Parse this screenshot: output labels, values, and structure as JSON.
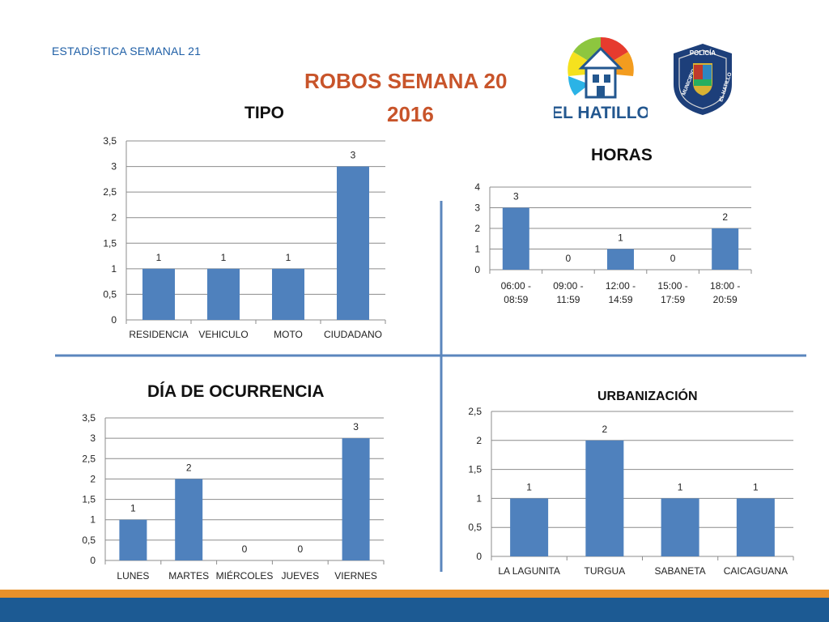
{
  "header": {
    "subtitle": "ESTADÍSTICA SEMANAL 21",
    "title_line1": "ROBOS SEMANA 20",
    "title_line2": "2016",
    "logo_hatillo_text": "EL HATILLO",
    "badge_top_text": "POLICÍA",
    "badge_left_text": "MUNICIPIO",
    "badge_right_text": "EL HATILLO"
  },
  "colors": {
    "bar": "#4f81bd",
    "title_orange": "#c8542a",
    "subtitle_blue": "#1f5fa6",
    "divider": "#4f81bd",
    "footer_orange": "#e8912a",
    "footer_blue": "#1c5a93"
  },
  "chart_data": [
    {
      "id": "tipo",
      "type": "bar",
      "title": "TIPO",
      "categories": [
        "RESIDENCIA",
        "VEHICULO",
        "MOTO",
        "CIUDADANO"
      ],
      "values": [
        1,
        1,
        1,
        3
      ],
      "ylim": [
        0,
        3.5
      ],
      "yticks": [
        "0",
        "0,5",
        "1",
        "1,5",
        "2",
        "2,5",
        "3",
        "3,5"
      ],
      "grid": true
    },
    {
      "id": "horas",
      "type": "bar",
      "title": "HORAS",
      "categories": [
        [
          "06:00 -",
          "08:59"
        ],
        [
          "09:00 -",
          "11:59"
        ],
        [
          "12:00 -",
          "14:59"
        ],
        [
          "15:00 -",
          "17:59"
        ],
        [
          "18:00 -",
          "20:59"
        ]
      ],
      "values": [
        3,
        0,
        1,
        0,
        2
      ],
      "ylim": [
        0,
        4
      ],
      "yticks": [
        "0",
        "1",
        "2",
        "3",
        "4"
      ],
      "grid": true
    },
    {
      "id": "dia",
      "type": "bar",
      "title": "DÍA DE OCURRENCIA",
      "categories": [
        "LUNES",
        "MARTES",
        "MIÉRCOLES",
        "JUEVES",
        "VIERNES"
      ],
      "values": [
        1,
        2,
        0,
        0,
        3
      ],
      "ylim": [
        0,
        3.5
      ],
      "yticks": [
        "0",
        "0,5",
        "1",
        "1,5",
        "2",
        "2,5",
        "3",
        "3,5"
      ],
      "grid": true
    },
    {
      "id": "urb",
      "type": "bar",
      "title": "URBANIZACIÓN",
      "categories": [
        "LA LAGUNITA",
        "TURGUA",
        "SABANETA",
        "CAICAGUANA"
      ],
      "values": [
        1,
        2,
        1,
        1
      ],
      "ylim": [
        0,
        2.5
      ],
      "yticks": [
        "0",
        "0,5",
        "1",
        "1,5",
        "2",
        "2,5"
      ],
      "grid": true
    }
  ]
}
